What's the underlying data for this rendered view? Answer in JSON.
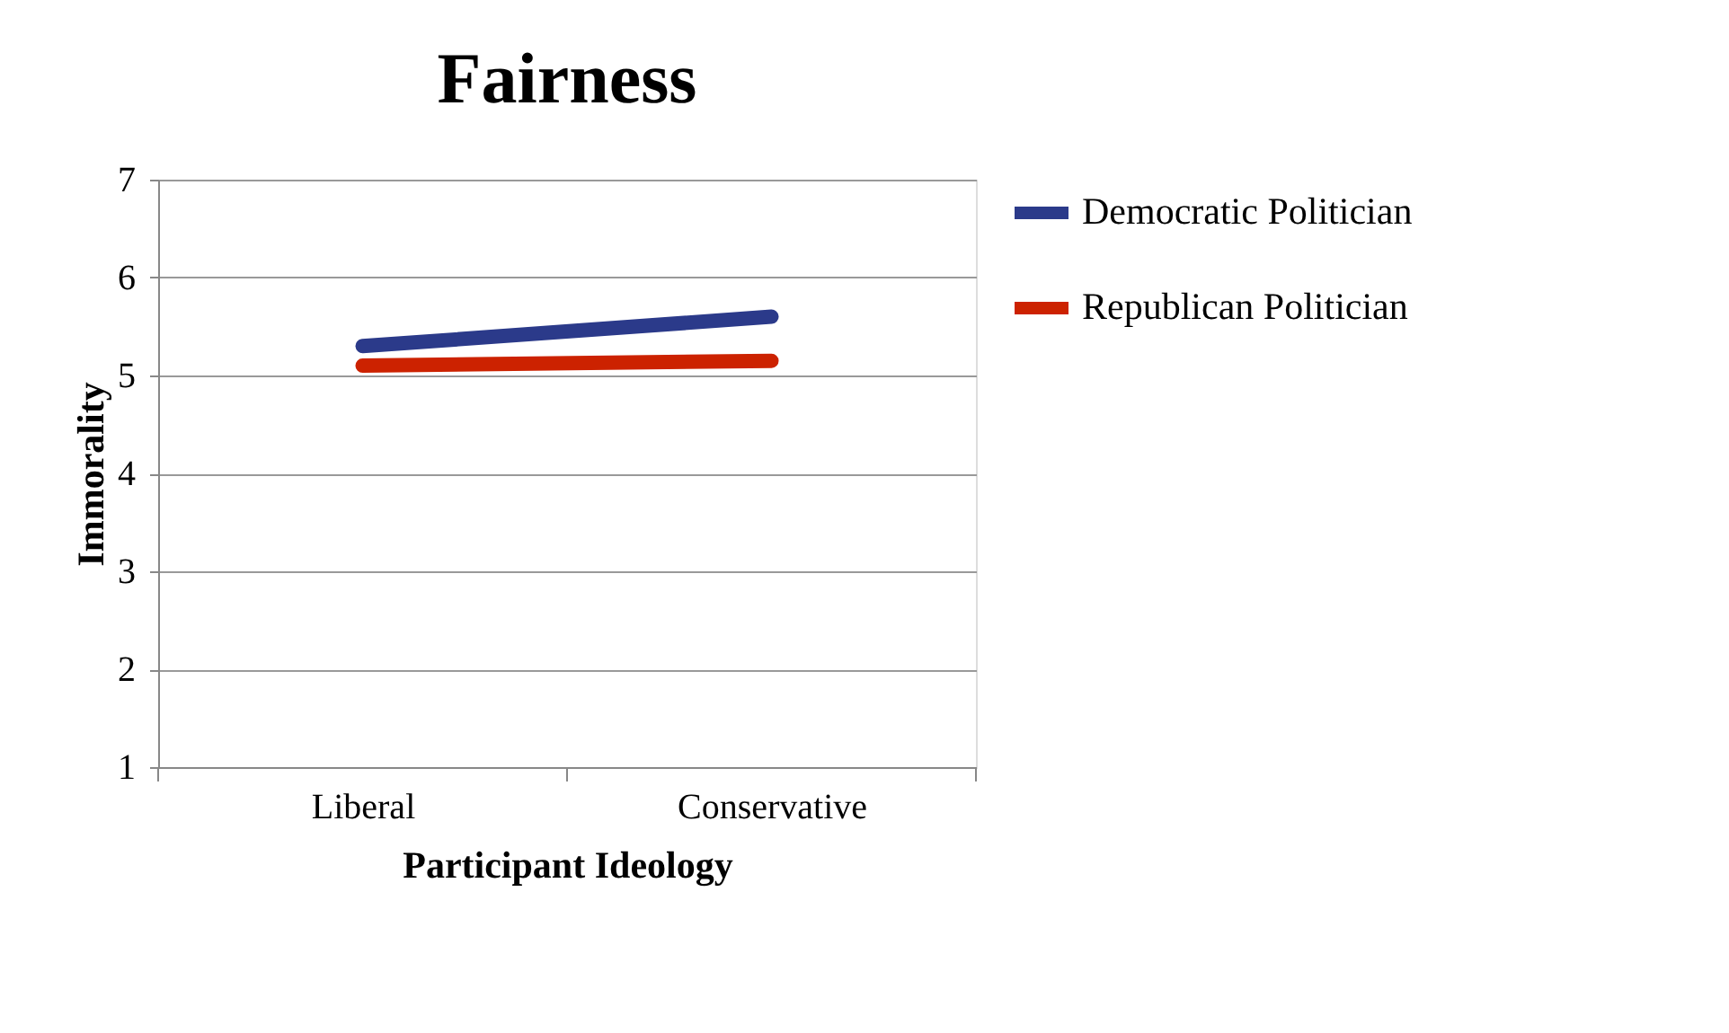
{
  "chart_data": {
    "type": "line",
    "title": "Fairness",
    "xlabel": "Participant Ideology",
    "ylabel": "Immorality",
    "categories": [
      "Liberal",
      "Conservative"
    ],
    "series": [
      {
        "name": "Democratic Politician",
        "color": "#2b3a8a",
        "values": [
          5.3,
          5.6
        ]
      },
      {
        "name": "Republican Politician",
        "color": "#cc2200",
        "values": [
          5.1,
          5.15
        ]
      }
    ],
    "ylim": [
      1,
      7
    ],
    "yticks": [
      1,
      2,
      3,
      4,
      5,
      6,
      7
    ],
    "grid": "y",
    "legend": "right",
    "line_style": "solid",
    "marker": "none"
  }
}
